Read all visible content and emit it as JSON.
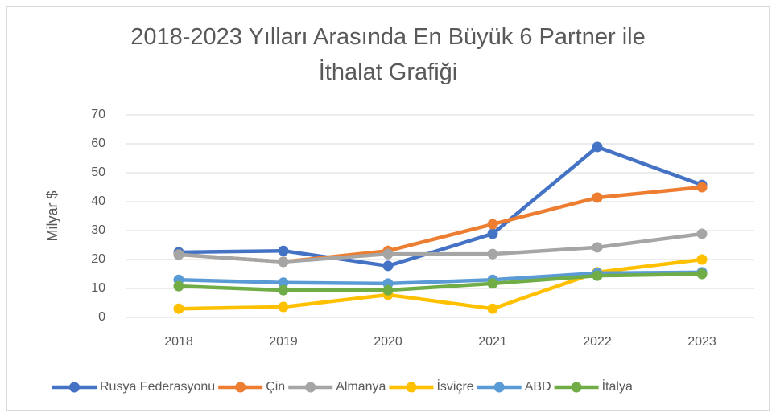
{
  "chart_data": {
    "type": "line",
    "title": "2018-2023 Yılları Arasında En Büyük 6 Partner ile İthalat Grafiği",
    "y_label": "Milyar $",
    "categories": [
      "2018",
      "2019",
      "2020",
      "2021",
      "2022",
      "2023"
    ],
    "series": [
      {
        "name": "Rusya Federasyonu",
        "color": "#4472c4",
        "values": [
          22.5,
          23,
          17.8,
          28.9,
          58.9,
          45.8
        ]
      },
      {
        "name": "Çin",
        "color": "#ed7d31",
        "values": [
          21.7,
          19.2,
          23,
          32.2,
          41.4,
          45
        ]
      },
      {
        "name": "Almanya",
        "color": "#a5a5a5",
        "values": [
          21.7,
          19.2,
          21.9,
          21.9,
          24.2,
          28.9
        ]
      },
      {
        "name": "İsviçre",
        "color": "#ffc000",
        "values": [
          3,
          3.6,
          7.8,
          3,
          15.6,
          20
        ]
      },
      {
        "name": "ABD",
        "color": "#5b9bd5",
        "values": [
          13,
          12,
          11.7,
          13,
          15.3,
          15.6
        ]
      },
      {
        "name": "İtalya",
        "color": "#70ad47",
        "values": [
          10.8,
          9.4,
          9.4,
          11.7,
          14.4,
          15
        ]
      }
    ],
    "ylim": [
      0,
      70
    ],
    "yticks": [
      0,
      10,
      20,
      30,
      40,
      50,
      60,
      70
    ],
    "grid": true,
    "legend": "bottom"
  }
}
